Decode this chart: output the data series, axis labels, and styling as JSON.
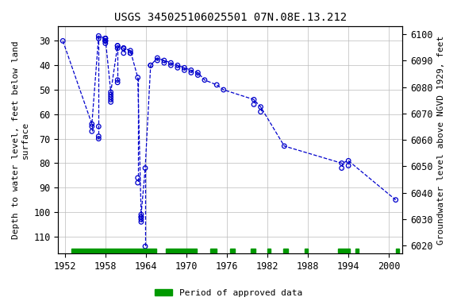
{
  "title": "USGS 345025106025501 07N.08E.13.212",
  "ylabel_left": "Depth to water level, feet below land\nsurface",
  "ylabel_right": "Groundwater level above NGVD 1929, feet",
  "xlim": [
    1951,
    2002
  ],
  "ylim_left": [
    117,
    24
  ],
  "ylim_right": [
    6017,
    6103
  ],
  "yticks_left": [
    30,
    40,
    50,
    60,
    70,
    80,
    90,
    100,
    110
  ],
  "yticks_right": [
    6020,
    6030,
    6040,
    6050,
    6060,
    6070,
    6080,
    6090,
    6100
  ],
  "xticks": [
    1952,
    1958,
    1964,
    1970,
    1976,
    1982,
    1988,
    1994,
    2000
  ],
  "year_groups": [
    {
      "x": 1951.7,
      "vals": [
        30
      ]
    },
    {
      "x": 1956.0,
      "vals": [
        65,
        67,
        64
      ]
    },
    {
      "x": 1957.0,
      "vals": [
        69,
        70,
        65,
        28,
        29
      ]
    },
    {
      "x": 1958.0,
      "vals": [
        29,
        30,
        30,
        30,
        29,
        29,
        30,
        31
      ]
    },
    {
      "x": 1958.8,
      "vals": [
        51,
        55,
        54,
        53,
        52
      ]
    },
    {
      "x": 1959.8,
      "vals": [
        32,
        32,
        33,
        47,
        46
      ]
    },
    {
      "x": 1960.7,
      "vals": [
        33,
        33,
        35,
        33
      ]
    },
    {
      "x": 1961.7,
      "vals": [
        34,
        35,
        35
      ]
    },
    {
      "x": 1962.8,
      "vals": [
        45,
        88,
        86
      ]
    },
    {
      "x": 1963.3,
      "vals": [
        101,
        102,
        102,
        103,
        104
      ]
    },
    {
      "x": 1963.9,
      "vals": [
        114,
        82
      ]
    },
    {
      "x": 1964.7,
      "vals": [
        40,
        40
      ]
    },
    {
      "x": 1965.7,
      "vals": [
        37,
        38
      ]
    },
    {
      "x": 1966.7,
      "vals": [
        38,
        39
      ]
    },
    {
      "x": 1967.7,
      "vals": [
        39,
        40
      ]
    },
    {
      "x": 1968.7,
      "vals": [
        40,
        41
      ]
    },
    {
      "x": 1969.7,
      "vals": [
        41,
        42
      ]
    },
    {
      "x": 1970.7,
      "vals": [
        42,
        43
      ]
    },
    {
      "x": 1971.7,
      "vals": [
        43,
        44
      ]
    },
    {
      "x": 1972.7,
      "vals": [
        46
      ]
    },
    {
      "x": 1974.5,
      "vals": [
        48
      ]
    },
    {
      "x": 1975.5,
      "vals": [
        50
      ]
    },
    {
      "x": 1980.0,
      "vals": [
        54,
        56
      ]
    },
    {
      "x": 1981.0,
      "vals": [
        57,
        59
      ]
    },
    {
      "x": 1984.5,
      "vals": [
        73
      ]
    },
    {
      "x": 1993.0,
      "vals": [
        80,
        82
      ]
    },
    {
      "x": 1994.0,
      "vals": [
        81,
        79
      ]
    },
    {
      "x": 2001.0,
      "vals": [
        95
      ]
    }
  ],
  "approved_periods": [
    [
      1953.0,
      1965.5
    ],
    [
      1967.0,
      1971.5
    ],
    [
      1973.5,
      1974.5
    ],
    [
      1976.5,
      1977.2
    ],
    [
      1979.5,
      1980.2
    ],
    [
      1982.0,
      1982.5
    ],
    [
      1984.3,
      1985.0
    ],
    [
      1987.5,
      1988.0
    ],
    [
      1992.5,
      1994.2
    ],
    [
      1995.0,
      1995.5
    ],
    [
      2001.0,
      2001.5
    ]
  ],
  "line_color": "#0000CC",
  "marker_facecolor": "none",
  "marker_edgecolor": "#0000CC",
  "approved_color": "#009900",
  "background_color": "#ffffff",
  "grid_color": "#bbbbbb",
  "title_fontsize": 10,
  "label_fontsize": 8,
  "tick_fontsize": 8.5
}
